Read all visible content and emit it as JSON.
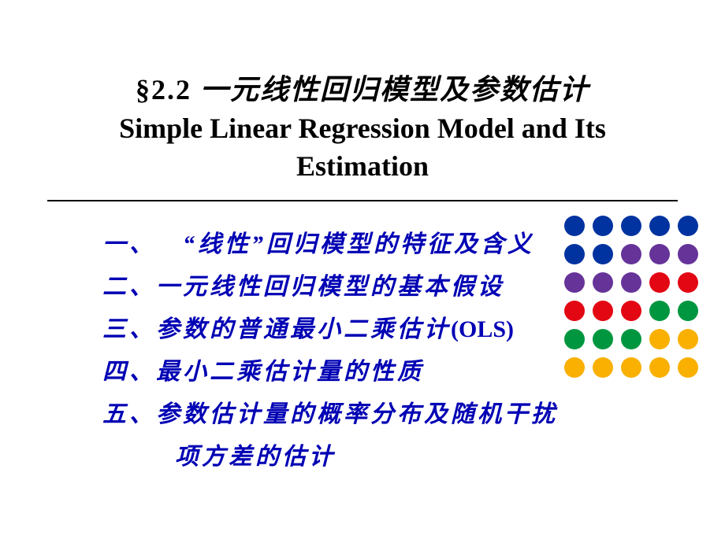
{
  "title": {
    "section": "§2.2",
    "cn": "一元线性回归模型及参数估计",
    "en1": "Simple Linear Regression Model and Its",
    "en2": "Estimation"
  },
  "items": {
    "i1": "一、 “线性”回归模型的特征及含义",
    "i2": "二、一元线性回归模型的基本假设",
    "i3_pre": "三、参数的普通最小二乘估计",
    "i3_ols": "(OLS)",
    "i4": "四、最小二乘估计量的性质",
    "i5a": "五、参数估计量的概率分布及随机干扰",
    "i5b": "项方差的估计"
  },
  "dot_colors": {
    "r1": [
      "#0033a0",
      "#0033a0",
      "#0033a0",
      "#0033a0",
      "#0033a0"
    ],
    "r2": [
      "#0033a0",
      "#0033a0",
      "#663399",
      "#663399",
      "#663399"
    ],
    "r3": [
      "#663399",
      "#663399",
      "#663399",
      "#e30613",
      "#e30613"
    ],
    "r4": [
      "#e30613",
      "#e30613",
      "#e30613",
      "#009640",
      "#009640"
    ],
    "r5": [
      "#009640",
      "#009640",
      "#009640",
      "#f9b000",
      "#f9b000"
    ],
    "r6": [
      "#f9b000",
      "#f9b000",
      "#f9b000",
      "#f9b000",
      "#f9b000"
    ]
  }
}
